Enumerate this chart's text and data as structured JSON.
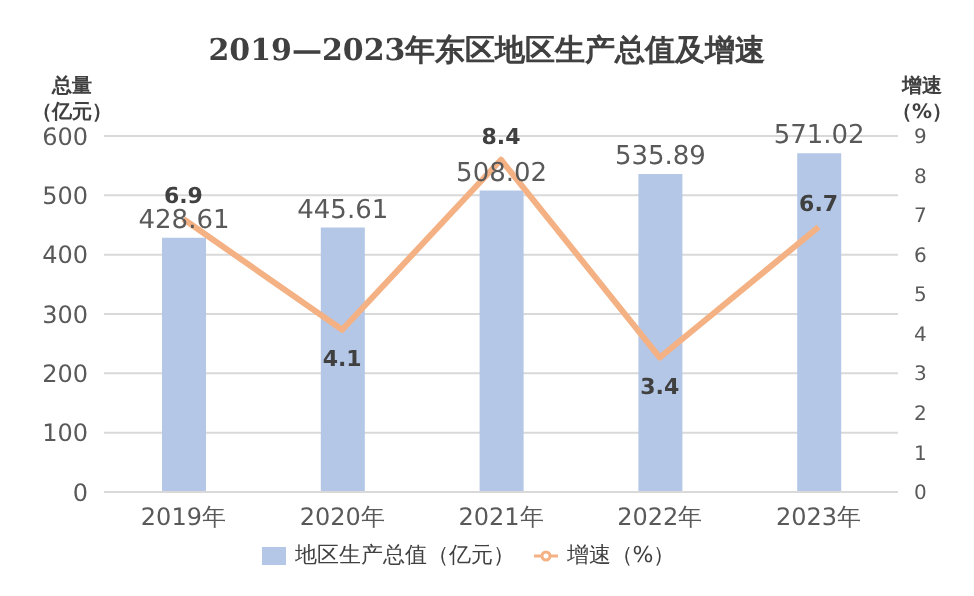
{
  "chart_data": {
    "type": "bar",
    "title": "2019—2023年东区地区生产总值及增速",
    "ylabel": "总量（亿元）",
    "y2label": "增速（%）",
    "categories": [
      "2019年",
      "2020年",
      "2021年",
      "2022年",
      "2023年"
    ],
    "series": [
      {
        "name": "地区生产总值（亿元）",
        "color": "#b4c7e7",
        "values": [
          428.61,
          445.61,
          508.02,
          535.89,
          571.02
        ]
      },
      {
        "name": "增速（%）",
        "type": "line",
        "axis": "y2",
        "color": "#f4b183",
        "values": [
          6.9,
          4.1,
          8.4,
          3.4,
          6.7
        ]
      }
    ],
    "ylim": [
      0,
      600
    ],
    "yticks": [
      0,
      100,
      200,
      300,
      400,
      500,
      600
    ],
    "y2lim": [
      0,
      9
    ],
    "y2ticks": [
      0,
      1,
      2,
      3,
      4,
      5,
      6,
      7,
      8,
      9
    ],
    "grid": "y",
    "legend": "bottom",
    "marker": "none",
    "line_style": "solid",
    "data_labels": true
  }
}
